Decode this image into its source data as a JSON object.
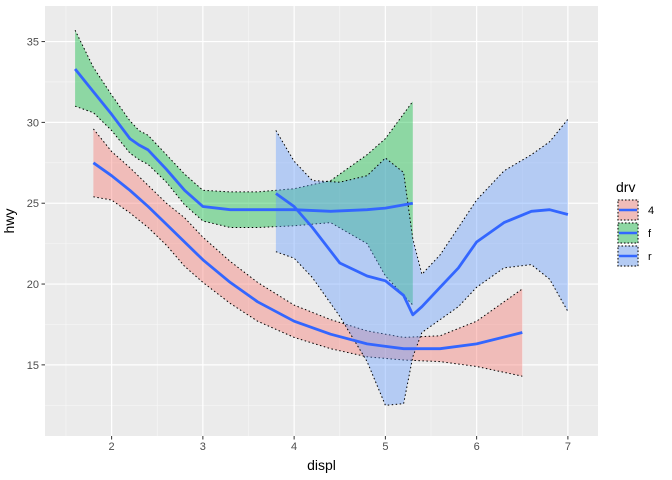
{
  "chart_data": {
    "type": "line",
    "xlabel": "displ",
    "ylabel": "hwy",
    "xlim": [
      1.27,
      7.33
    ],
    "ylim": [
      10.6,
      37.2
    ],
    "x_ticks": [
      2,
      3,
      4,
      5,
      6,
      7
    ],
    "y_ticks": [
      15,
      20,
      25,
      30,
      35
    ],
    "x_ticks_text": [
      "2",
      "3",
      "4",
      "5",
      "6",
      "7"
    ],
    "y_ticks_text": [
      "15",
      "20",
      "25",
      "30",
      "35"
    ],
    "grid": true,
    "legend": {
      "title": "drv",
      "position": "right",
      "entries": [
        "4",
        "f",
        "r"
      ]
    },
    "series": [
      {
        "name": "4",
        "color": "#f8766d",
        "line_color": "#3366ff",
        "x": [
          1.8,
          2.0,
          2.2,
          2.4,
          2.6,
          2.8,
          3.0,
          3.3,
          3.6,
          4.0,
          4.4,
          4.8,
          5.2,
          5.6,
          6.0,
          6.5
        ],
        "y": [
          27.5,
          26.7,
          25.8,
          24.8,
          23.7,
          22.6,
          21.5,
          20.1,
          18.9,
          17.7,
          16.9,
          16.3,
          16.0,
          16.0,
          16.3,
          17.0
        ],
        "lower": [
          25.4,
          25.2,
          24.4,
          23.5,
          22.4,
          21.1,
          20.1,
          18.8,
          17.7,
          16.7,
          16.0,
          15.5,
          15.3,
          15.2,
          14.9,
          14.3
        ],
        "upper": [
          29.6,
          28.2,
          27.2,
          26.1,
          25.0,
          24.1,
          22.9,
          21.4,
          20.1,
          18.7,
          17.8,
          17.1,
          16.7,
          16.8,
          17.7,
          19.7
        ]
      },
      {
        "name": "f",
        "color": "#00ba38",
        "line_color": "#3366ff",
        "x": [
          1.6,
          1.8,
          2.0,
          2.2,
          2.3,
          2.4,
          2.6,
          2.8,
          3.0,
          3.3,
          3.6,
          4.0,
          4.4,
          4.8,
          5.0,
          5.3
        ],
        "y": [
          33.3,
          31.9,
          30.5,
          29.0,
          28.6,
          28.3,
          27.1,
          25.8,
          24.8,
          24.6,
          24.6,
          24.6,
          24.5,
          24.6,
          24.7,
          25.0
        ],
        "lower": [
          31.0,
          30.6,
          29.5,
          28.1,
          27.7,
          27.4,
          26.3,
          24.9,
          23.9,
          23.5,
          23.5,
          23.6,
          23.8,
          22.5,
          20.5,
          18.7
        ],
        "upper": [
          35.7,
          33.4,
          31.7,
          30.1,
          29.5,
          29.2,
          28.0,
          26.8,
          25.8,
          25.7,
          25.7,
          25.9,
          26.4,
          28.0,
          29.0,
          31.3
        ]
      },
      {
        "name": "r",
        "color": "#619cff",
        "line_color": "#3366ff",
        "x": [
          3.8,
          4.0,
          4.2,
          4.5,
          4.8,
          5.0,
          5.2,
          5.3,
          5.4,
          5.6,
          5.8,
          6.0,
          6.3,
          6.6,
          6.8,
          7.0
        ],
        "y": [
          25.6,
          24.8,
          23.5,
          21.3,
          20.5,
          20.2,
          19.3,
          18.1,
          18.6,
          19.8,
          21.0,
          22.6,
          23.8,
          24.5,
          24.6,
          24.3
        ],
        "lower": [
          22.0,
          21.6,
          20.4,
          18.0,
          15.2,
          12.5,
          12.6,
          15.5,
          17.0,
          17.8,
          18.6,
          19.8,
          21.0,
          21.2,
          20.3,
          18.3
        ],
        "upper": [
          29.5,
          27.6,
          26.4,
          26.3,
          26.7,
          27.8,
          26.9,
          22.8,
          20.6,
          21.8,
          23.5,
          25.2,
          27.0,
          28.0,
          28.8,
          30.2
        ]
      }
    ]
  }
}
